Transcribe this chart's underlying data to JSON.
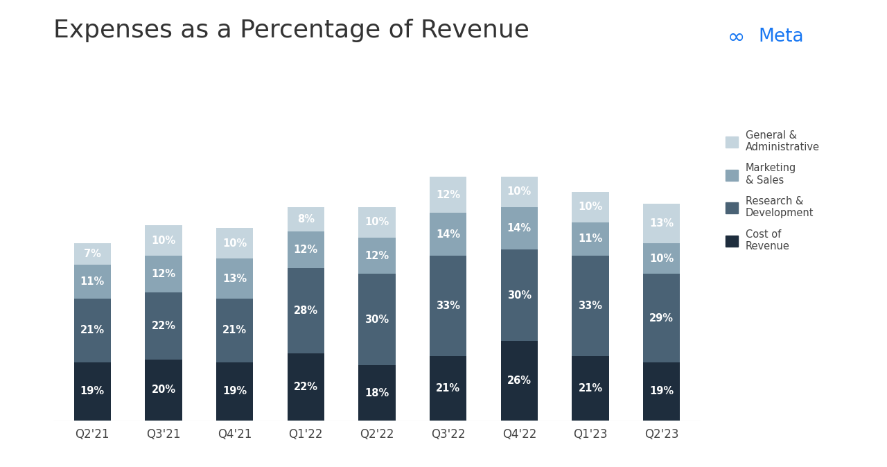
{
  "title": "Expenses as a Percentage of Revenue",
  "categories": [
    "Q2'21",
    "Q3'21",
    "Q4'21",
    "Q1'22",
    "Q2'22",
    "Q3'22",
    "Q4'22",
    "Q1'23",
    "Q2'23"
  ],
  "series": {
    "Cost of Revenue": [
      19,
      20,
      19,
      22,
      18,
      21,
      26,
      21,
      19
    ],
    "Research & Development": [
      21,
      22,
      21,
      28,
      30,
      33,
      30,
      33,
      29
    ],
    "Marketing & Sales": [
      11,
      12,
      13,
      12,
      12,
      14,
      14,
      11,
      10
    ],
    "General & Administrative": [
      7,
      10,
      10,
      8,
      10,
      12,
      10,
      10,
      13
    ]
  },
  "colors": {
    "Cost of Revenue": "#1e2d3d",
    "Research & Development": "#4a6275",
    "Marketing & Sales": "#8aa5b5",
    "General & Administrative": "#c5d5de"
  },
  "background_color": "#ffffff",
  "title_fontsize": 26,
  "label_fontsize": 10.5,
  "tick_fontsize": 12,
  "meta_logo_color": "#1877f2",
  "bar_width": 0.52,
  "ylim": [
    0,
    95
  ]
}
